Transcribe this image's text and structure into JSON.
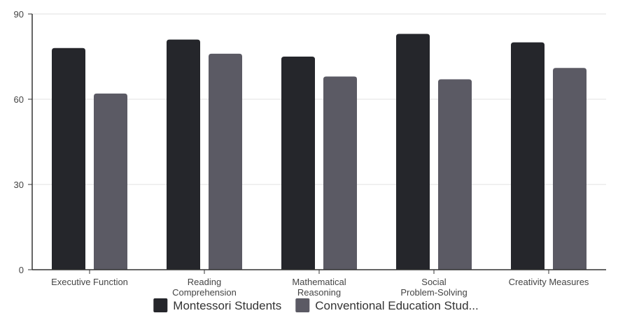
{
  "chart_data": {
    "type": "bar",
    "categories": [
      [
        "Executive Function"
      ],
      [
        "Reading",
        "Comprehension"
      ],
      [
        "Mathematical",
        "Reasoning"
      ],
      [
        "Social",
        "Problem-Solving"
      ],
      [
        "Creativity Measures"
      ]
    ],
    "series": [
      {
        "name": "Montessori Students",
        "color": "#25262b",
        "values": [
          78,
          81,
          75,
          83,
          80
        ]
      },
      {
        "name": "Conventional Education Stud...",
        "color": "#5b5a64",
        "values": [
          62,
          76,
          68,
          67,
          71
        ]
      }
    ],
    "ylim": [
      0,
      90
    ],
    "yticks": [
      0,
      30,
      60,
      90
    ],
    "grid": true,
    "legend_position": "bottom"
  }
}
